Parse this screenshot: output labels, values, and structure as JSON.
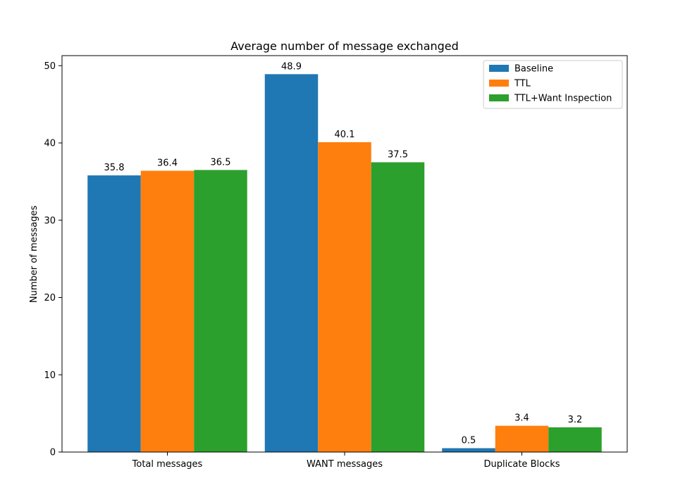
{
  "chart_data": {
    "type": "bar",
    "title": "Average number of message exchanged",
    "xlabel": "",
    "ylabel": "Number of messages",
    "categories": [
      "Total messages",
      "WANT messages",
      "Duplicate Blocks"
    ],
    "series": [
      {
        "name": "Baseline",
        "color": "#1f77b4",
        "values": [
          35.8,
          48.9,
          0.5
        ]
      },
      {
        "name": "TTL",
        "color": "#ff7f0e",
        "values": [
          36.4,
          40.1,
          3.4
        ]
      },
      {
        "name": "TTL+Want Inspection",
        "color": "#2ca02c",
        "values": [
          36.5,
          37.5,
          3.2
        ]
      }
    ],
    "ylim": [
      0,
      51.3
    ],
    "yticks": [
      0,
      10,
      20,
      30,
      40,
      50
    ],
    "legend": "top-right",
    "grid": false
  }
}
